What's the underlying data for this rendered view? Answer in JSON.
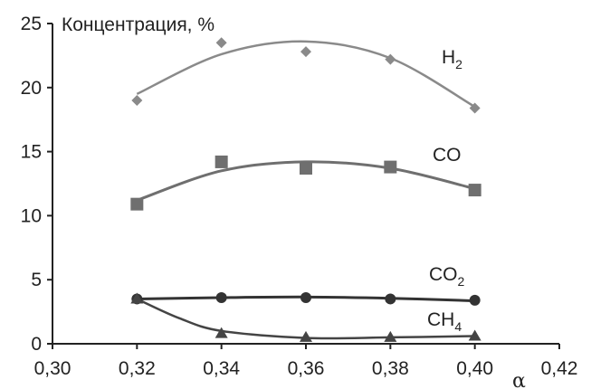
{
  "chart_data": {
    "type": "line",
    "ylabel": "Концентрация, %",
    "xlabel": "α",
    "xlim": [
      0.3,
      0.42
    ],
    "ylim": [
      0,
      25
    ],
    "x_ticks": [
      "0,30",
      "0,32",
      "0,34",
      "0,36",
      "0,38",
      "0,40",
      "0,42"
    ],
    "y_ticks": [
      "0",
      "5",
      "10",
      "15",
      "20",
      "25"
    ],
    "x_tick_values": [
      0.3,
      0.32,
      0.34,
      0.36,
      0.38,
      0.4,
      0.42
    ],
    "y_tick_values": [
      0,
      5,
      10,
      15,
      20,
      25
    ],
    "grid": false,
    "series": [
      {
        "name": "H2",
        "label_main": "H",
        "label_sub": "2",
        "marker": "diamond",
        "color": "#8a8a8a",
        "x": [
          0.32,
          0.34,
          0.36,
          0.38,
          0.4
        ],
        "y": [
          19.0,
          23.5,
          22.8,
          22.2,
          18.4
        ],
        "curve": [
          [
            0.32,
            19.5
          ],
          [
            0.34,
            22.6
          ],
          [
            0.36,
            23.6
          ],
          [
            0.38,
            22.3
          ],
          [
            0.4,
            18.5
          ]
        ]
      },
      {
        "name": "CO",
        "label_main": "CO",
        "label_sub": "",
        "marker": "square",
        "color": "#6f6f6f",
        "x": [
          0.32,
          0.34,
          0.36,
          0.38,
          0.4
        ],
        "y": [
          10.9,
          14.2,
          13.7,
          13.8,
          12.0
        ],
        "curve": [
          [
            0.32,
            11.2
          ],
          [
            0.34,
            13.5
          ],
          [
            0.36,
            14.2
          ],
          [
            0.38,
            13.7
          ],
          [
            0.4,
            12.1
          ]
        ]
      },
      {
        "name": "CO2",
        "label_main": "CO",
        "label_sub": "2",
        "marker": "circle",
        "color": "#333333",
        "x": [
          0.32,
          0.34,
          0.36,
          0.38,
          0.4
        ],
        "y": [
          3.5,
          3.6,
          3.6,
          3.5,
          3.4
        ],
        "curve": [
          [
            0.32,
            3.5
          ],
          [
            0.34,
            3.6
          ],
          [
            0.36,
            3.65
          ],
          [
            0.38,
            3.55
          ],
          [
            0.4,
            3.35
          ]
        ]
      },
      {
        "name": "CH4",
        "label_main": "CH",
        "label_sub": "4",
        "marker": "triangle",
        "color": "#444444",
        "x": [
          0.32,
          0.34,
          0.36,
          0.38,
          0.4
        ],
        "y": [
          3.5,
          0.8,
          0.5,
          0.5,
          0.6
        ],
        "curve": [
          [
            0.32,
            3.5
          ],
          [
            0.33,
            2.0
          ],
          [
            0.34,
            1.0
          ],
          [
            0.36,
            0.45
          ],
          [
            0.38,
            0.5
          ],
          [
            0.4,
            0.6
          ]
        ]
      }
    ]
  }
}
